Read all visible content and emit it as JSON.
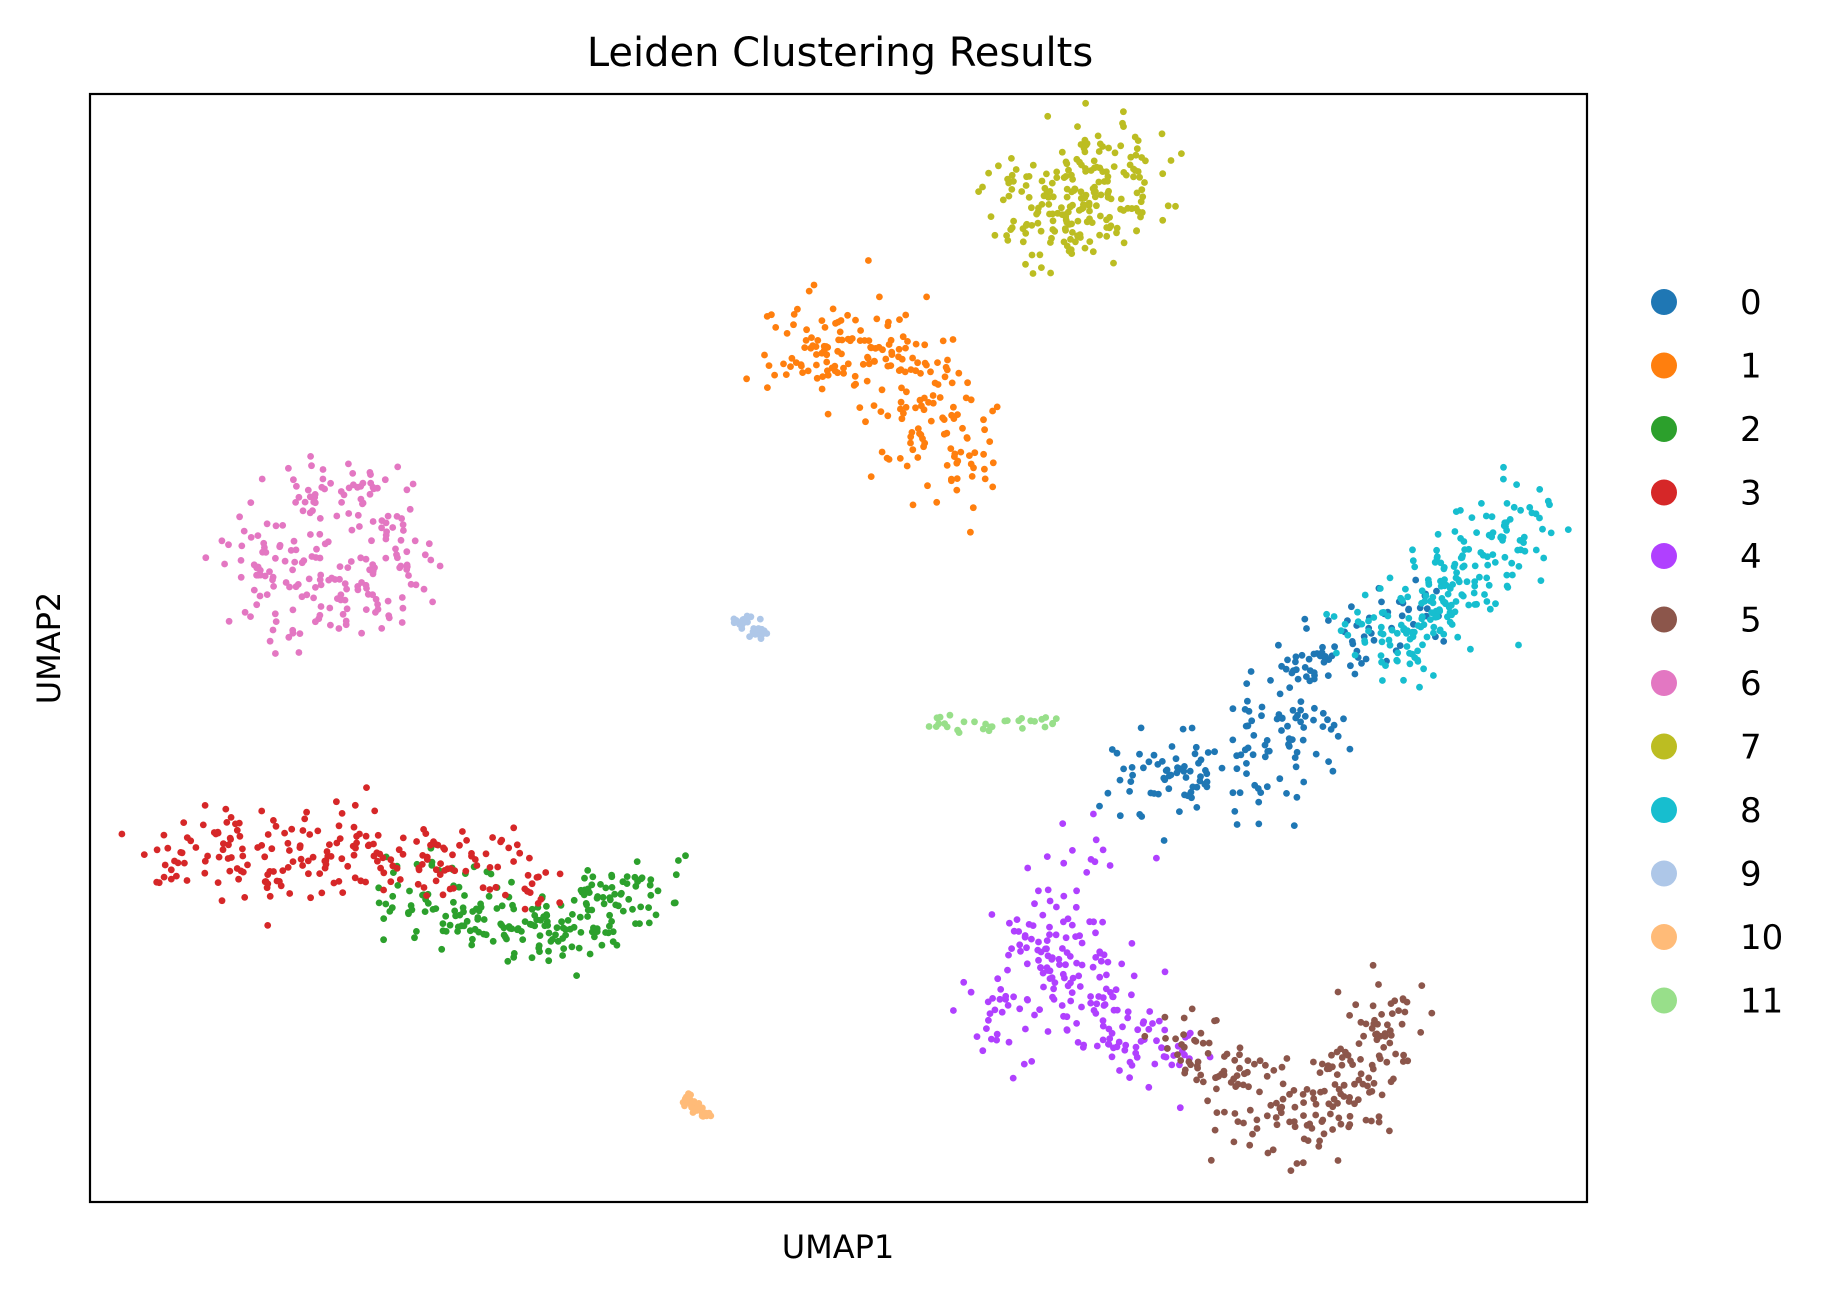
{
  "chart_data": {
    "type": "scatter",
    "title": "Leiden Clustering Results",
    "xlabel": "UMAP1",
    "ylabel": "UMAP2",
    "xlim": [
      0,
      100
    ],
    "ylim": [
      0,
      100
    ],
    "grid": false,
    "ticks": false,
    "legend": {
      "position": "right",
      "title": ""
    },
    "series": [
      {
        "name": "0",
        "color": "#1f77b4",
        "anchors": [
          [
            70,
            37.5
          ],
          [
            74,
            40
          ],
          [
            78,
            43
          ],
          [
            80,
            46
          ],
          [
            82,
            49
          ],
          [
            85,
            51
          ],
          [
            88,
            53
          ],
          [
            83,
            42
          ],
          [
            78,
            38
          ],
          [
            73,
            39
          ]
        ]
      },
      {
        "name": "1",
        "color": "#ff7f0e",
        "anchors": [
          [
            47.5,
            77
          ],
          [
            50,
            78.5
          ],
          [
            53,
            78
          ],
          [
            55.5,
            75.5
          ],
          [
            57.5,
            72
          ],
          [
            58.5,
            68.5
          ],
          [
            58,
            65.5
          ],
          [
            55,
            70
          ],
          [
            52,
            74
          ],
          [
            49,
            76
          ]
        ]
      },
      {
        "name": "2",
        "color": "#2ca02c",
        "anchors": [
          [
            22,
            27.5
          ],
          [
            25,
            26.5
          ],
          [
            28,
            25
          ],
          [
            30,
            24.5
          ],
          [
            32,
            25
          ],
          [
            34,
            26
          ],
          [
            36,
            27.5
          ]
        ]
      },
      {
        "name": "3",
        "color": "#d62728",
        "anchors": [
          [
            5,
            31
          ],
          [
            8,
            31.5
          ],
          [
            10,
            32.5
          ],
          [
            14,
            32.5
          ],
          [
            17,
            32
          ],
          [
            20,
            31
          ],
          [
            23,
            30.5
          ],
          [
            26,
            30
          ],
          [
            29,
            29
          ],
          [
            12,
            30
          ],
          [
            18,
            30
          ]
        ]
      },
      {
        "name": "4",
        "color": "#b040ff",
        "anchors": [
          [
            63,
            24.5
          ],
          [
            64,
            21
          ],
          [
            66,
            18.5
          ],
          [
            68,
            17
          ],
          [
            70,
            14.5
          ],
          [
            72,
            12.5
          ],
          [
            67,
            22
          ],
          [
            65.5,
            29.5
          ],
          [
            61.5,
            16.5
          ]
        ]
      },
      {
        "name": "5",
        "color": "#8c564b",
        "anchors": [
          [
            73,
            14
          ],
          [
            76,
            12
          ],
          [
            78,
            9
          ],
          [
            80,
            7
          ],
          [
            82,
            8.5
          ],
          [
            84,
            11
          ],
          [
            86,
            14
          ],
          [
            87,
            17
          ],
          [
            85,
            9
          ]
        ]
      },
      {
        "name": "6",
        "color": "#e377c2",
        "anchors": [
          [
            11,
            58.5
          ],
          [
            13,
            62
          ],
          [
            15.5,
            64
          ],
          [
            18,
            63.5
          ],
          [
            20,
            61
          ],
          [
            20.5,
            57.5
          ],
          [
            18.5,
            54
          ],
          [
            15,
            53
          ],
          [
            12,
            54.5
          ],
          [
            15,
            58
          ]
        ]
      },
      {
        "name": "7",
        "color": "#bcbd22",
        "anchors": [
          [
            62.5,
            91
          ],
          [
            64.5,
            93
          ],
          [
            67,
            94
          ],
          [
            69,
            93.5
          ],
          [
            69.5,
            91
          ],
          [
            67.5,
            88.5
          ],
          [
            65,
            88
          ],
          [
            63.5,
            89
          ],
          [
            66.5,
            91.5
          ]
        ]
      },
      {
        "name": "8",
        "color": "#17becf",
        "anchors": [
          [
            86,
            50
          ],
          [
            88,
            52.5
          ],
          [
            90,
            55
          ],
          [
            92,
            57.5
          ],
          [
            94,
            59.5
          ],
          [
            95.5,
            61
          ],
          [
            91.5,
            54
          ],
          [
            89,
            52
          ]
        ]
      },
      {
        "name": "9",
        "color": "#aec7e8",
        "anchors": [
          [
            43.3,
            52.5
          ],
          [
            44.2,
            51.9
          ],
          [
            45.2,
            51.2
          ]
        ]
      },
      {
        "name": "10",
        "color": "#ffbb78",
        "anchors": [
          [
            39.8,
            9.6
          ],
          [
            40.2,
            8.8
          ],
          [
            40.8,
            8.1
          ],
          [
            41.3,
            7.5
          ]
        ]
      },
      {
        "name": "11",
        "color": "#98df8a",
        "anchors": [
          [
            56,
            43.3
          ],
          [
            58,
            43.2
          ],
          [
            59.5,
            43
          ],
          [
            61.5,
            43.1
          ],
          [
            63,
            43.3
          ],
          [
            64.5,
            43.4
          ]
        ]
      }
    ]
  }
}
